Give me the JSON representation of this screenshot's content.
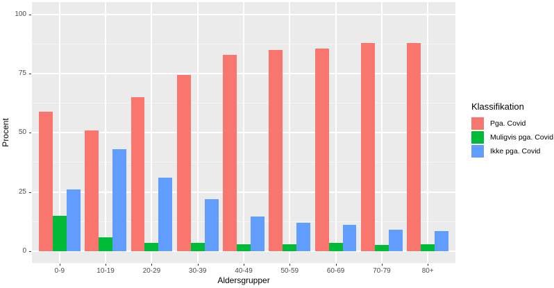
{
  "chart_data": {
    "type": "bar",
    "title": "",
    "xlabel": "Aldersgrupper",
    "ylabel": "Procent",
    "categories": [
      "0-9",
      "10-19",
      "20-29",
      "30-39",
      "40-49",
      "50-59",
      "60-69",
      "70-79",
      "80+"
    ],
    "series": [
      {
        "name": "Pga. Covid",
        "color": "#F8766D",
        "values": [
          59,
          51,
          65,
          74.5,
          83,
          85,
          85.5,
          88,
          88
        ]
      },
      {
        "name": "Muligvis pga. Covid",
        "color": "#00BA38",
        "values": [
          15,
          6,
          3.5,
          3.5,
          3,
          3,
          3.5,
          2.5,
          3
        ]
      },
      {
        "name": "Ikke pga. Covid",
        "color": "#619CFF",
        "values": [
          26,
          43,
          31,
          22,
          14.5,
          12,
          11,
          9,
          8.5
        ]
      }
    ],
    "ylim": [
      0,
      100
    ],
    "yticks": [
      0,
      25,
      50,
      75,
      100
    ],
    "yticks_minor": [
      12.5,
      37.5,
      62.5,
      87.5
    ],
    "grid": true,
    "legend_title": "Klassifikation",
    "legend_position": "right",
    "colors": {
      "panel_background": "#EBEBEB",
      "gridline": "#FFFFFF",
      "tick_text": "#4D4D4D",
      "axis_title_text": "#000000",
      "tick_mark": "#333333"
    }
  }
}
